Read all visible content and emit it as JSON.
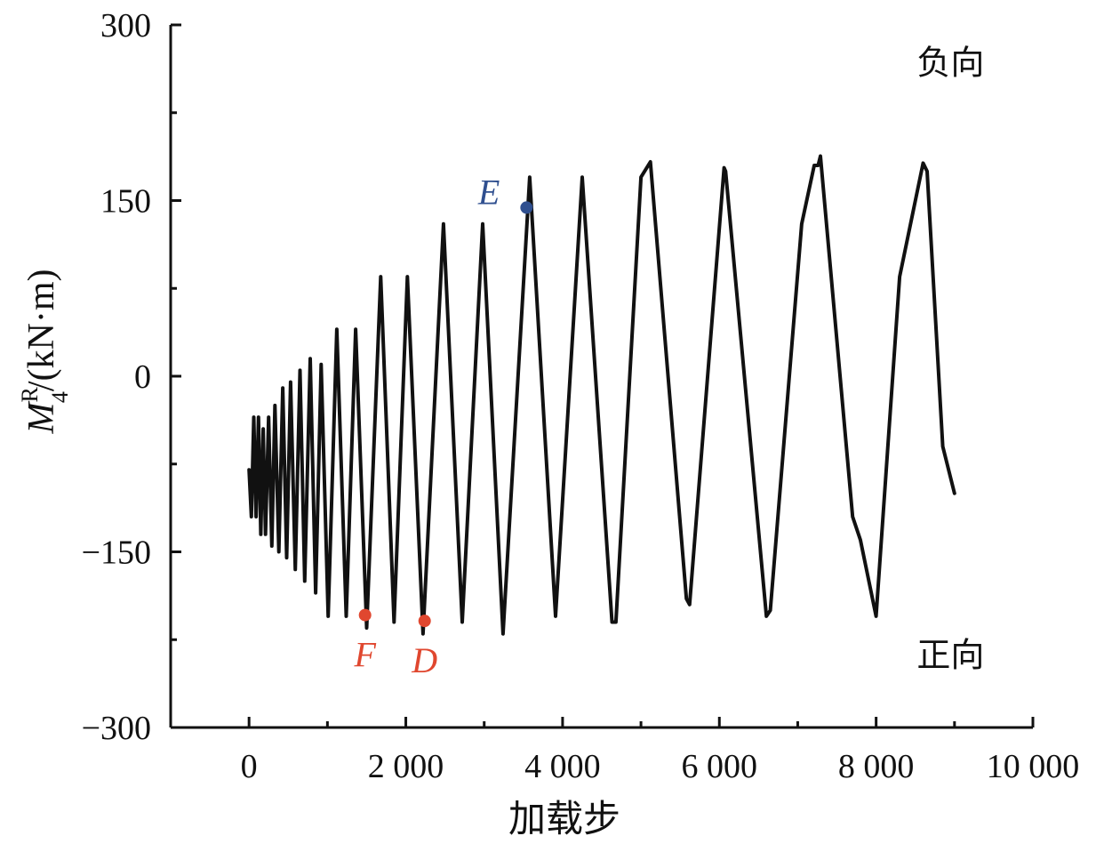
{
  "chart_data": {
    "type": "line",
    "title": "",
    "xlabel": "加载步",
    "ylabel": {
      "symbol": "M",
      "superscript": "R",
      "subscript": "4",
      "unit": "/(kN·m)"
    },
    "xlim": [
      -1000,
      10000
    ],
    "ylim": [
      -300,
      300
    ],
    "x_ticks": [
      0,
      2000,
      4000,
      6000,
      8000,
      10000
    ],
    "x_tick_labels": [
      "0",
      "2 000",
      "4 000",
      "6 000",
      "8 000",
      "10 000"
    ],
    "y_ticks": [
      -300,
      -150,
      0,
      150,
      300
    ],
    "y_tick_labels": [
      "−300",
      "−150",
      "0",
      "150",
      "300"
    ],
    "grid": false,
    "series": [
      {
        "color": "#111111",
        "x": [
          0,
          30,
          60,
          90,
          120,
          150,
          180,
          210,
          250,
          290,
          330,
          380,
          430,
          480,
          530,
          590,
          650,
          710,
          780,
          850,
          920,
          1010,
          1120,
          1240,
          1360,
          1500,
          1680,
          1850,
          2020,
          2220,
          2480,
          2720,
          2980,
          3240,
          3580,
          3910,
          4250,
          4630,
          4680,
          5000,
          5120,
          5580,
          5620,
          6060,
          6080,
          6600,
          6650,
          7050,
          7210,
          7260,
          7290,
          7700,
          7800,
          8000,
          8300,
          8600,
          8650,
          8850,
          9000
        ],
        "y": [
          -80,
          -120,
          -35,
          -120,
          -35,
          -135,
          -45,
          -135,
          -35,
          -145,
          -25,
          -150,
          -10,
          -155,
          -5,
          -165,
          5,
          -175,
          15,
          -185,
          10,
          -205,
          40,
          -205,
          40,
          -215,
          85,
          -210,
          85,
          -220,
          130,
          -210,
          130,
          -220,
          170,
          -205,
          170,
          -210,
          -210,
          170,
          183,
          -190,
          -195,
          178,
          175,
          -205,
          -200,
          130,
          180,
          180,
          188,
          -120,
          -140,
          -205,
          85,
          182,
          175,
          -60,
          -100
        ]
      }
    ],
    "annotations": [
      {
        "text": "负向",
        "x": 8950,
        "y": 258
      },
      {
        "text": "正向",
        "x": 8950,
        "y": -248
      }
    ],
    "points": [
      {
        "label": "E",
        "x": 3540,
        "y": 144,
        "color": "#2f4f8f"
      },
      {
        "label": "F",
        "x": 1480,
        "y": -204,
        "color": "#e0472f"
      },
      {
        "label": "D",
        "x": 2240,
        "y": -209,
        "color": "#e0472f"
      }
    ]
  }
}
